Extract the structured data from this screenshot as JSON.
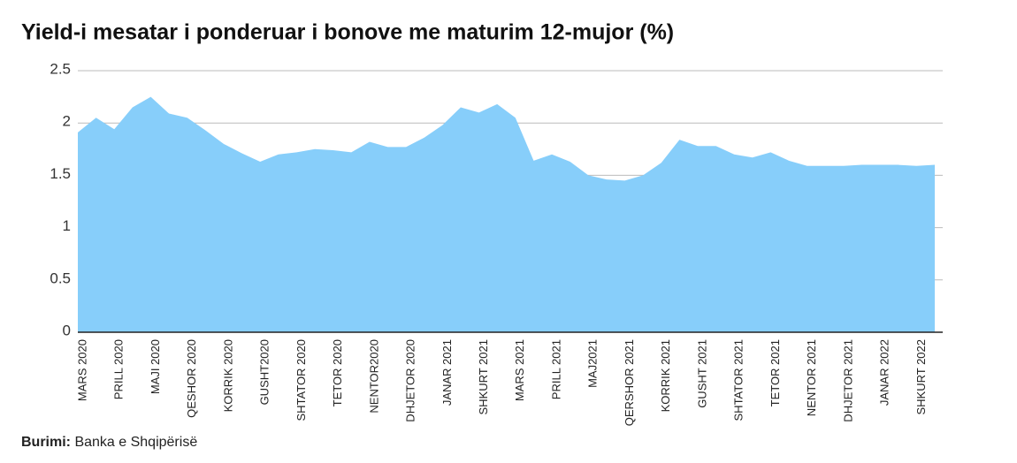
{
  "chart_data": {
    "type": "area",
    "title": "Yield-i mesatar i ponderuar i bonove me maturim 12-mujor (%)",
    "source_label": "Burimi:",
    "source": "Banka e Shqipërisë",
    "categories": [
      "MARS 2020",
      null,
      "PRILL 2020",
      null,
      "MAJI 2020",
      null,
      "QESHOR 2020",
      null,
      "KORRIK 2020",
      null,
      "GUSHT2020",
      null,
      "SHTATOR 2020",
      null,
      "TETOR 2020",
      null,
      "NENTOR2020",
      null,
      "DHJETOR 2020",
      null,
      "JANAR 2021",
      null,
      "SHKURT 2021",
      null,
      "MARS 2021",
      null,
      "PRILL 2021",
      null,
      "MAJ2021",
      null,
      "QERSHOR 2021",
      null,
      "KORRIK 2021",
      null,
      "GUSHT 2021",
      null,
      "SHTATOR 2021",
      null,
      "TETOR 2021",
      null,
      "NENTOR 2021",
      null,
      "DHJETOR 2021",
      null,
      "JANAR 2022",
      null,
      "SHKURT 2022",
      null
    ],
    "values": [
      1.91,
      2.05,
      1.94,
      2.15,
      2.25,
      2.09,
      2.05,
      1.93,
      1.8,
      1.71,
      1.63,
      1.7,
      1.72,
      1.75,
      1.74,
      1.72,
      1.82,
      1.77,
      1.77,
      1.86,
      1.98,
      2.15,
      2.1,
      2.18,
      2.05,
      1.64,
      1.7,
      1.63,
      1.5,
      1.46,
      1.45,
      1.5,
      1.62,
      1.84,
      1.78,
      1.78,
      1.7,
      1.67,
      1.72,
      1.64,
      1.59,
      1.59,
      1.59,
      1.6,
      1.6,
      1.6,
      1.59,
      1.6
    ],
    "color": "#87cefa",
    "ylim": [
      0,
      2.5
    ],
    "yticks": [
      0,
      0.5,
      1,
      1.5,
      2,
      2.5
    ],
    "grid": true
  }
}
